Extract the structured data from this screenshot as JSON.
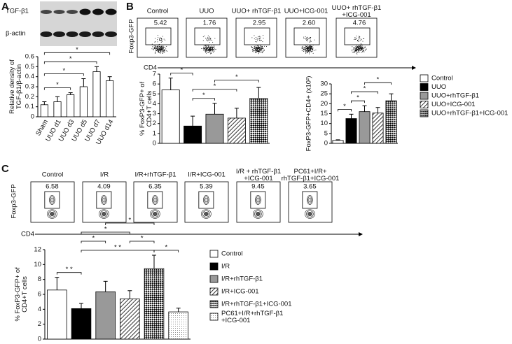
{
  "panel_labels": [
    "A",
    "B",
    "C"
  ],
  "blot": {
    "labels": [
      "TGF-β1",
      "β-actin"
    ]
  },
  "flow_b": {
    "y_label": "Foxp3-GFP",
    "x_label": "CD4",
    "titles": [
      "Control",
      "UUO",
      "UUO+ rhTGF-β1",
      "UUO+ICG-001",
      "UUO+ rhTGF-β1\n+ICG-001"
    ],
    "percentages": [
      "5.42",
      "1.76",
      "2.95",
      "2.60",
      "4.76"
    ]
  },
  "flow_c": {
    "y_label": "Foxp3-GFP",
    "x_label": "CD4",
    "titles": [
      "Control",
      "I/R",
      "I/R+rhTGF-β1",
      "I/R+ICG-001",
      "I/R + rhTGF-β1\n+ICG-001",
      "PC61+I/R+\nrhTGF-β1+ICG-001"
    ],
    "percentages": [
      "6.58",
      "4.09",
      "6.35",
      "5.39",
      "9.45",
      "3.65"
    ]
  },
  "chart_data": [
    {
      "type": "bar",
      "categories": [
        "Sham",
        "UUO d1",
        "UUO d3",
        "UUO d5",
        "UUO d7",
        "UUO d14"
      ],
      "values": [
        0.12,
        0.15,
        0.22,
        0.3,
        0.45,
        0.36
      ],
      "errors": [
        0.03,
        0.05,
        0.02,
        0.08,
        0.05,
        0.04
      ],
      "color": "#ffffff",
      "ylabel": "Relative density of\nTGF-β1/β-actin",
      "ylim": [
        0,
        0.6
      ],
      "yticks": [
        0,
        0.1,
        0.2,
        0.3,
        0.4,
        0.5,
        0.6
      ],
      "significance": [
        {
          "between": [
            0,
            2
          ],
          "label": "*"
        },
        {
          "between": [
            0,
            3
          ],
          "label": "*"
        },
        {
          "between": [
            0,
            4
          ],
          "label": "*"
        },
        {
          "between": [
            0,
            5
          ],
          "label": "*"
        }
      ]
    },
    {
      "type": "bar",
      "values": [
        5.4,
        1.75,
        2.95,
        2.55,
        4.55
      ],
      "errors": [
        1.2,
        1.0,
        1.1,
        1.0,
        1.1
      ],
      "fills": [
        "#ffffff",
        "#000000",
        "#999999",
        "hatch",
        "checker"
      ],
      "ylabel": "% FoxP3-GFP+ of\nCD4+T cells",
      "ylim": [
        0,
        7
      ],
      "yticks": [
        0,
        1,
        2,
        3,
        4,
        5,
        6,
        7
      ],
      "significance": [
        {
          "between": [
            0,
            1
          ],
          "label": "*"
        },
        {
          "between": [
            1,
            2
          ],
          "label": "*"
        },
        {
          "between": [
            1,
            3
          ],
          "label": "*"
        },
        {
          "between": [
            2,
            4
          ],
          "label": "*"
        }
      ]
    },
    {
      "type": "bar",
      "categories": [
        "Control",
        "UUO",
        "UUO+rhTGF-β1",
        "UUO+ICG-001",
        "UUO+rhTGF-β1+ICG-001"
      ],
      "values": [
        1.5,
        12.5,
        16,
        15.3,
        21.5
      ],
      "errors": [
        0.3,
        2.2,
        3,
        2.8,
        3.5
      ],
      "fills": [
        "#ffffff",
        "#000000",
        "#999999",
        "hatch",
        "checker"
      ],
      "legend": "right",
      "ylabel": "FoxP3-GFP+CD4+ (x10²)",
      "ylim": [
        0,
        30
      ],
      "yticks": [
        0,
        5,
        10,
        15,
        20,
        25,
        30
      ],
      "significance": [
        {
          "between": [
            0,
            1
          ],
          "label": "*"
        },
        {
          "between": [
            1,
            2
          ],
          "label": "*"
        },
        {
          "between": [
            1,
            3
          ],
          "label": "*"
        },
        {
          "between": [
            2,
            4
          ],
          "label": "*"
        }
      ]
    },
    {
      "type": "bar",
      "categories": [
        "Control",
        "I/R",
        "I/R+rhTGF-β1",
        "I/R+ICG-001",
        "I/R+rhTGF-β1+ICG-001",
        "PC61+I/R+rhTGF-β1\n+ICG-001"
      ],
      "values": [
        6.58,
        4.09,
        6.35,
        5.39,
        9.45,
        3.65
      ],
      "errors": [
        1.7,
        0.7,
        1.4,
        1.1,
        1.8,
        0.5
      ],
      "fills": [
        "#ffffff",
        "#000000",
        "#999999",
        "hatch",
        "checker",
        "dots"
      ],
      "legend": "right",
      "ylabel": "% FoxP3-GFP+ of\nCD4+T cells",
      "ylim": [
        0,
        12
      ],
      "yticks": [
        0,
        2,
        4,
        6,
        8,
        10,
        12
      ],
      "significance": [
        {
          "between": [
            0,
            1
          ],
          "label": "* *"
        },
        {
          "between": [
            1,
            4
          ],
          "label": "* *"
        },
        {
          "between": [
            1,
            2
          ],
          "label": "*"
        },
        {
          "between": [
            4,
            5
          ],
          "label": "*"
        },
        {
          "between": [
            3,
            4
          ],
          "label": "*"
        },
        {
          "between": [
            1,
            3
          ],
          "label": "*"
        },
        {
          "between": [
            2,
            4
          ],
          "label": "*"
        }
      ]
    }
  ]
}
